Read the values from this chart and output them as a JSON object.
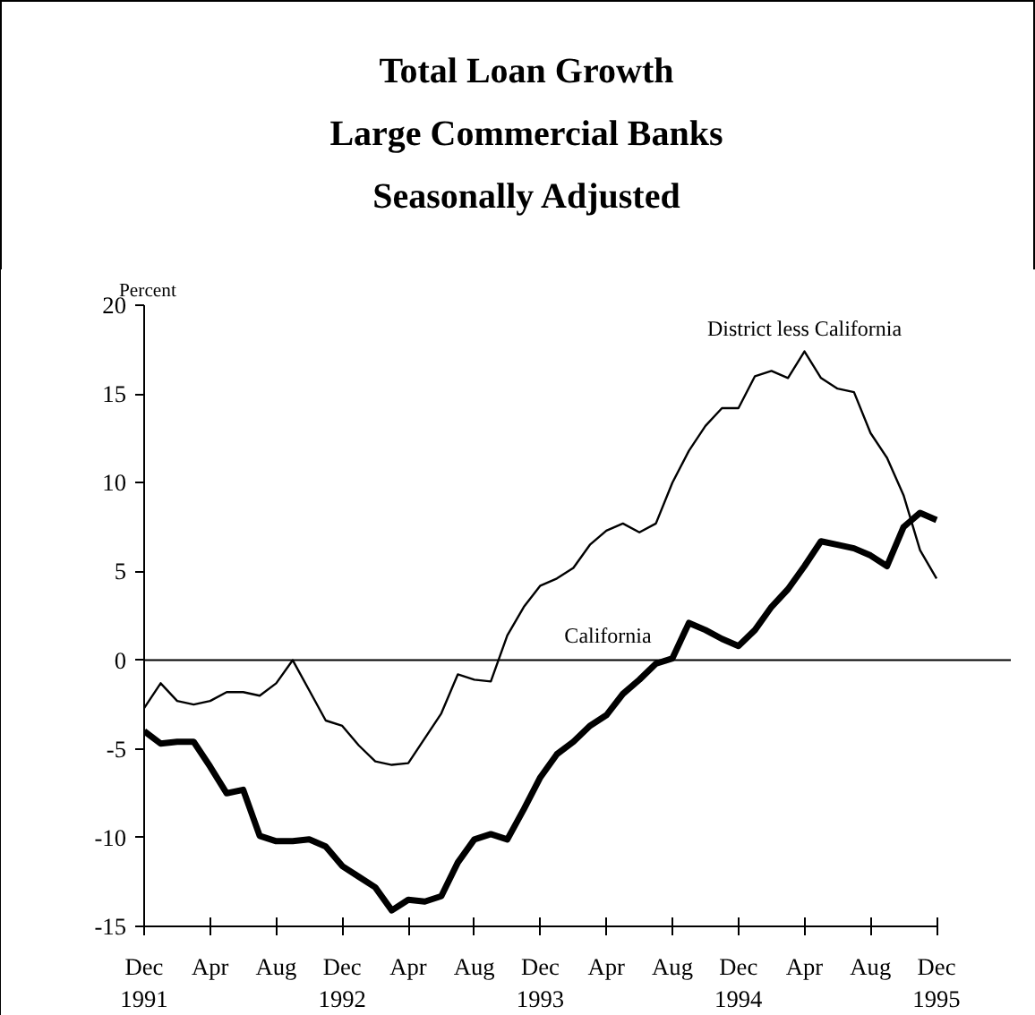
{
  "chart_data": {
    "type": "line",
    "title": "Total Loan Growth\nLarge Commercial Banks\nSeasonally Adjusted",
    "ylabel": "Percent",
    "x": [
      "1991-12",
      "1992-01",
      "1992-02",
      "1992-03",
      "1992-04",
      "1992-05",
      "1992-06",
      "1992-07",
      "1992-08",
      "1992-09",
      "1992-10",
      "1992-11",
      "1992-12",
      "1993-01",
      "1993-02",
      "1993-03",
      "1993-04",
      "1993-05",
      "1993-06",
      "1993-07",
      "1993-08",
      "1993-09",
      "1993-10",
      "1993-11",
      "1993-12",
      "1994-01",
      "1994-02",
      "1994-03",
      "1994-04",
      "1994-05",
      "1994-06",
      "1994-07",
      "1994-08",
      "1994-09",
      "1994-10",
      "1994-11",
      "1994-12",
      "1995-01",
      "1995-02",
      "1995-03",
      "1995-04",
      "1995-05",
      "1995-06",
      "1995-07",
      "1995-08",
      "1995-09",
      "1995-10",
      "1995-11",
      "1995-12"
    ],
    "series": [
      {
        "name": "District less California",
        "color": "#000000",
        "values": [
          -2.7,
          -1.3,
          -2.3,
          -2.5,
          -2.3,
          -1.8,
          -1.8,
          -2.0,
          -1.3,
          0,
          -1.7,
          -3.4,
          -3.7,
          -4.8,
          -5.7,
          -5.9,
          -5.8,
          -4.4,
          -3.0,
          -0.8,
          -1.1,
          -1.2,
          1.4,
          3.0,
          4.2,
          4.6,
          5.2,
          6.5,
          7.3,
          7.7,
          7.2,
          7.7,
          10.0,
          11.8,
          13.2,
          14.2,
          14.2,
          16.0,
          16.3,
          15.9,
          17.4,
          15.9,
          15.3,
          15.1,
          12.8,
          11.4,
          9.3,
          6.2,
          4.6
        ]
      },
      {
        "name": "California",
        "color": "#000000",
        "values": [
          -4.0,
          -4.7,
          -4.6,
          -4.6,
          -6.0,
          -7.5,
          -7.3,
          -9.9,
          -10.2,
          -10.2,
          -10.1,
          -10.5,
          -11.6,
          -12.2,
          -12.8,
          -14.1,
          -13.5,
          -13.6,
          -13.3,
          -11.4,
          -10.1,
          -9.8,
          -10.1,
          -8.4,
          -6.6,
          -5.3,
          -4.6,
          -3.7,
          -3.1,
          -1.9,
          -1.1,
          -0.2,
          0.1,
          2.1,
          1.7,
          1.2,
          0.8,
          1.7,
          3.0,
          4.0,
          5.3,
          6.7,
          6.5,
          6.3,
          5.9,
          5.3,
          7.5,
          8.3,
          7.9
        ]
      }
    ],
    "xlim": [
      "1991-12",
      "1995-12"
    ],
    "xticks": [
      {
        "value": "1991-12",
        "label": "Dec\n1991"
      },
      {
        "value": "1992-04",
        "label": "Apr"
      },
      {
        "value": "1992-08",
        "label": "Aug"
      },
      {
        "value": "1992-12",
        "label": "Dec\n1992"
      },
      {
        "value": "1993-04",
        "label": "Apr"
      },
      {
        "value": "1993-08",
        "label": "Aug"
      },
      {
        "value": "1993-12",
        "label": "Dec\n1993"
      },
      {
        "value": "1994-04",
        "label": "Apr"
      },
      {
        "value": "1994-08",
        "label": "Aug"
      },
      {
        "value": "1994-12",
        "label": "Dec\n1994"
      },
      {
        "value": "1995-04",
        "label": "Apr"
      },
      {
        "value": "1995-08",
        "label": "Aug"
      },
      {
        "value": "1995-12",
        "label": "Dec\n1995"
      }
    ],
    "ylim": [
      -15,
      20
    ],
    "yticks": [
      -15,
      -10,
      -5,
      0,
      5,
      10,
      15,
      20
    ],
    "ref_lines": [
      {
        "axis": "y",
        "value": 0
      }
    ],
    "grid": false,
    "marker": "none",
    "line_style": "solid"
  }
}
